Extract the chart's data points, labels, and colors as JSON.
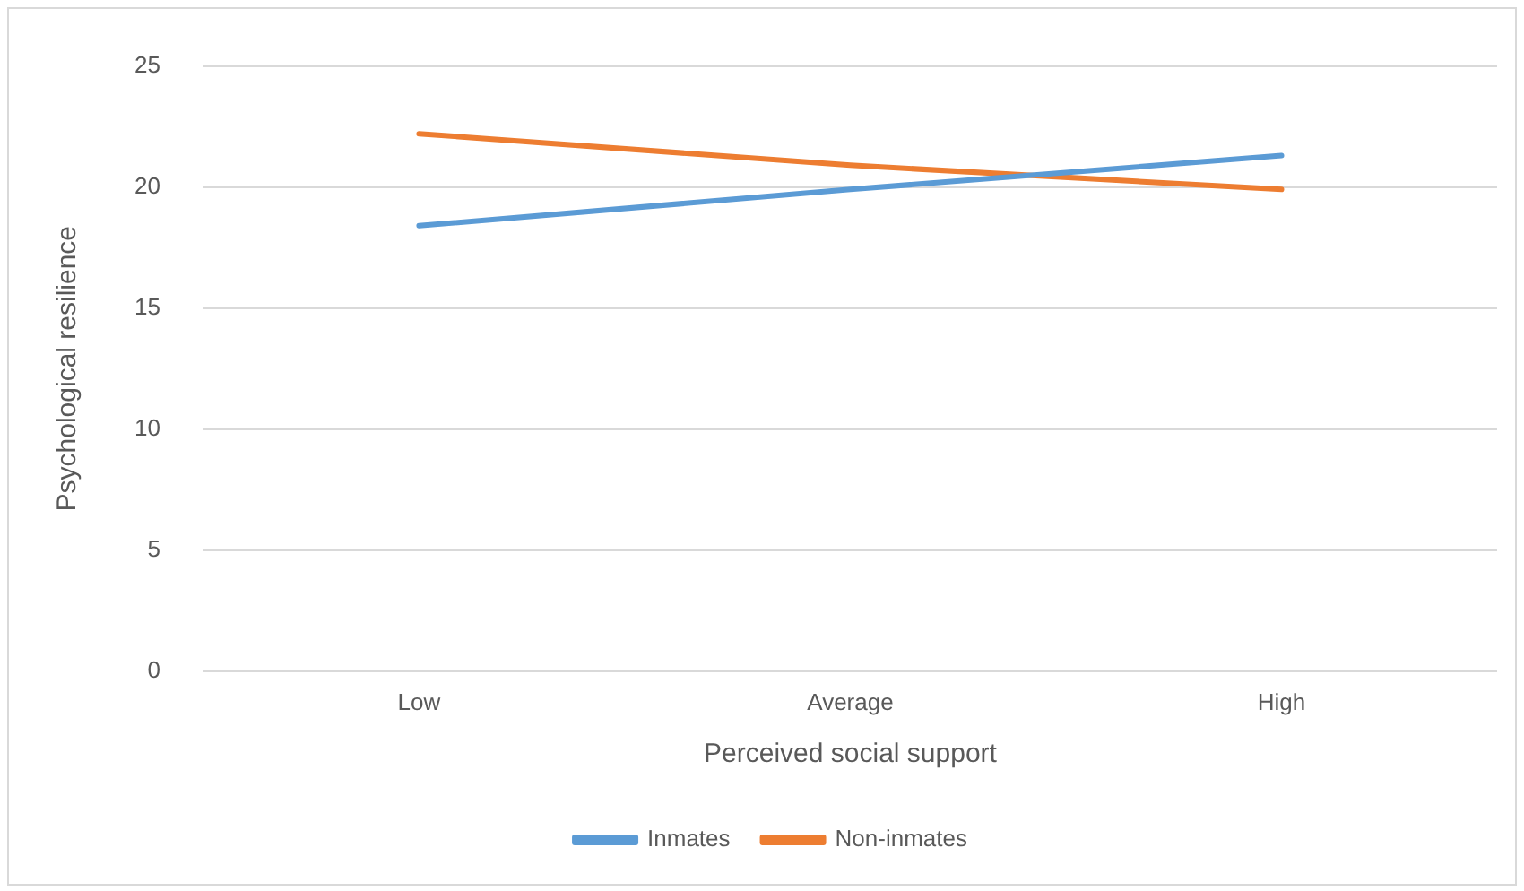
{
  "chart_data": {
    "type": "line",
    "xlabel": "Perceived social support",
    "ylabel": "Psychological resilience",
    "categories": [
      "Low",
      "Average",
      "High"
    ],
    "series": [
      {
        "name": "Inmates",
        "color": "#5b9bd5",
        "values": [
          18.4,
          19.9,
          21.3
        ]
      },
      {
        "name": "Non-inmates",
        "color": "#ed7d31",
        "values": [
          22.2,
          20.9,
          19.9
        ]
      }
    ],
    "ylim": [
      0,
      25
    ],
    "yticks": [
      0,
      5,
      10,
      15,
      20,
      25
    ],
    "grid": "y",
    "legend": "bottom",
    "marker": "none",
    "line_style": "solid"
  }
}
